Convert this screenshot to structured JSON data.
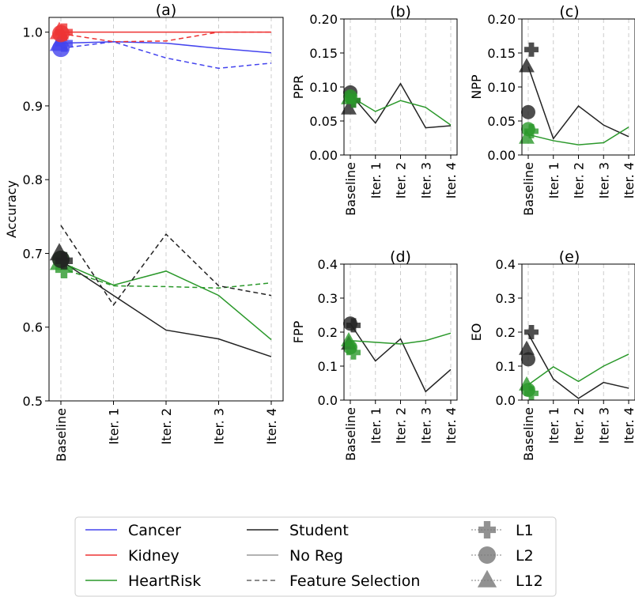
{
  "chart_data": [
    {
      "id": "a",
      "type": "line",
      "title": "(a)",
      "ylabel": "Accuracy",
      "categories": [
        "Baseline",
        "Iter. 1",
        "Iter. 2",
        "Iter. 3",
        "Iter. 4"
      ],
      "ylim": [
        0.5,
        1.02
      ],
      "yticks": [
        "0.5",
        "0.6",
        "0.7",
        "0.8",
        "0.9",
        "1.0"
      ],
      "ytick_values": [
        0.5,
        0.6,
        0.7,
        0.8,
        0.9,
        1.0
      ],
      "series": [
        {
          "dataset": "Cancer",
          "style": "No Reg",
          "values": [
            0.985,
            0.987,
            0.985,
            0.978,
            0.972
          ]
        },
        {
          "dataset": "Cancer",
          "style": "Feature Selection",
          "values": [
            0.978,
            0.987,
            0.965,
            0.951,
            0.958
          ]
        },
        {
          "dataset": "Kidney",
          "style": "No Reg",
          "values": [
            1.0,
            1.0,
            1.0,
            1.0,
            1.0
          ]
        },
        {
          "dataset": "Kidney",
          "style": "Feature Selection",
          "values": [
            0.998,
            0.987,
            0.988,
            1.0,
            1.0
          ]
        },
        {
          "dataset": "HeartRisk",
          "style": "No Reg",
          "values": [
            0.688,
            0.657,
            0.676,
            0.643,
            0.583
          ]
        },
        {
          "dataset": "HeartRisk",
          "style": "Feature Selection",
          "values": [
            0.68,
            0.656,
            0.655,
            0.653,
            0.66
          ]
        },
        {
          "dataset": "Student",
          "style": "No Reg",
          "values": [
            0.69,
            0.643,
            0.596,
            0.584,
            0.56
          ]
        },
        {
          "dataset": "Student",
          "style": "Feature Selection",
          "values": [
            0.738,
            0.63,
            0.726,
            0.656,
            0.643
          ]
        }
      ],
      "markers": [
        {
          "dataset": "Cancer",
          "reg": "L1",
          "y": 0.985
        },
        {
          "dataset": "Cancer",
          "reg": "L2",
          "y": 0.978
        },
        {
          "dataset": "Cancer",
          "reg": "L12",
          "y": 0.984
        },
        {
          "dataset": "Kidney",
          "reg": "L1",
          "y": 1.0
        },
        {
          "dataset": "Kidney",
          "reg": "L2",
          "y": 0.998
        },
        {
          "dataset": "Kidney",
          "reg": "L12",
          "y": 1.0
        },
        {
          "dataset": "HeartRisk",
          "reg": "L1",
          "y": 0.678
        },
        {
          "dataset": "HeartRisk",
          "reg": "L2",
          "y": 0.692
        },
        {
          "dataset": "HeartRisk",
          "reg": "L12",
          "y": 0.687
        },
        {
          "dataset": "Student",
          "reg": "L1",
          "y": 0.69
        },
        {
          "dataset": "Student",
          "reg": "L2",
          "y": 0.692
        },
        {
          "dataset": "Student",
          "reg": "L12",
          "y": 0.7
        }
      ]
    },
    {
      "id": "b",
      "type": "line",
      "title": "(b)",
      "ylabel": "PPR",
      "categories": [
        "Baseline",
        "Iter. 1",
        "Iter. 2",
        "Iter. 3",
        "Iter. 4"
      ],
      "ylim": [
        0.0,
        0.2
      ],
      "yticks": [
        "0.00",
        "0.05",
        "0.10",
        "0.15",
        "0.20"
      ],
      "ytick_values": [
        0.0,
        0.05,
        0.1,
        0.15,
        0.2
      ],
      "series": [
        {
          "dataset": "Student",
          "style": "No Reg",
          "values": [
            0.09,
            0.047,
            0.105,
            0.04,
            0.043
          ]
        },
        {
          "dataset": "HeartRisk",
          "style": "No Reg",
          "values": [
            0.086,
            0.064,
            0.08,
            0.07,
            0.044
          ]
        }
      ],
      "markers": [
        {
          "dataset": "Student",
          "reg": "L1",
          "y": 0.08
        },
        {
          "dataset": "Student",
          "reg": "L2",
          "y": 0.092
        },
        {
          "dataset": "Student",
          "reg": "L12",
          "y": 0.068
        },
        {
          "dataset": "HeartRisk",
          "reg": "L1",
          "y": 0.08
        },
        {
          "dataset": "HeartRisk",
          "reg": "L2",
          "y": 0.086
        },
        {
          "dataset": "HeartRisk",
          "reg": "L12",
          "y": 0.083
        }
      ]
    },
    {
      "id": "c",
      "type": "line",
      "title": "(c)",
      "ylabel": "NPP",
      "categories": [
        "Baseline",
        "Iter. 1",
        "Iter. 2",
        "Iter. 3",
        "Iter. 4"
      ],
      "ylim": [
        0.0,
        0.2
      ],
      "yticks": [
        "0.00",
        "0.05",
        "0.10",
        "0.15",
        "0.20"
      ],
      "ytick_values": [
        0.0,
        0.05,
        0.1,
        0.15,
        0.2
      ],
      "series": [
        {
          "dataset": "Student",
          "style": "No Reg",
          "values": [
            0.13,
            0.024,
            0.072,
            0.044,
            0.027
          ]
        },
        {
          "dataset": "HeartRisk",
          "style": "No Reg",
          "values": [
            0.03,
            0.021,
            0.015,
            0.018,
            0.041
          ]
        }
      ],
      "markers": [
        {
          "dataset": "Student",
          "reg": "L1",
          "y": 0.155
        },
        {
          "dataset": "Student",
          "reg": "L2",
          "y": 0.063
        },
        {
          "dataset": "Student",
          "reg": "L12",
          "y": 0.13
        },
        {
          "dataset": "HeartRisk",
          "reg": "L1",
          "y": 0.035
        },
        {
          "dataset": "HeartRisk",
          "reg": "L2",
          "y": 0.038
        },
        {
          "dataset": "HeartRisk",
          "reg": "L12",
          "y": 0.025
        }
      ]
    },
    {
      "id": "d",
      "type": "line",
      "title": "(d)",
      "ylabel": "FPP",
      "categories": [
        "Baseline",
        "Iter. 1",
        "Iter. 2",
        "Iter. 3",
        "Iter. 4"
      ],
      "ylim": [
        0.0,
        0.4
      ],
      "yticks": [
        "0.0",
        "0.1",
        "0.2",
        "0.3",
        "0.4"
      ],
      "ytick_values": [
        0.0,
        0.1,
        0.2,
        0.3,
        0.4
      ],
      "series": [
        {
          "dataset": "Student",
          "style": "No Reg",
          "values": [
            0.225,
            0.115,
            0.18,
            0.025,
            0.09
          ]
        },
        {
          "dataset": "HeartRisk",
          "style": "No Reg",
          "values": [
            0.175,
            0.17,
            0.165,
            0.175,
            0.197
          ]
        }
      ],
      "markers": [
        {
          "dataset": "Student",
          "reg": "L1",
          "y": 0.22
        },
        {
          "dataset": "Student",
          "reg": "L2",
          "y": 0.225
        },
        {
          "dataset": "Student",
          "reg": "L12",
          "y": 0.165
        },
        {
          "dataset": "HeartRisk",
          "reg": "L1",
          "y": 0.14
        },
        {
          "dataset": "HeartRisk",
          "reg": "L2",
          "y": 0.155
        },
        {
          "dataset": "HeartRisk",
          "reg": "L12",
          "y": 0.175
        }
      ]
    },
    {
      "id": "e",
      "type": "line",
      "title": "(e)",
      "ylabel": "EO",
      "categories": [
        "Baseline",
        "Iter. 1",
        "Iter. 2",
        "Iter. 3",
        "Iter. 4"
      ],
      "ylim": [
        0.0,
        0.4
      ],
      "yticks": [
        "0.0",
        "0.1",
        "0.2",
        "0.3",
        "0.4"
      ],
      "ytick_values": [
        0.0,
        0.1,
        0.2,
        0.3,
        0.4
      ],
      "series": [
        {
          "dataset": "Student",
          "style": "No Reg",
          "values": [
            0.195,
            0.062,
            0.005,
            0.052,
            0.035
          ]
        },
        {
          "dataset": "HeartRisk",
          "style": "No Reg",
          "values": [
            0.045,
            0.098,
            0.055,
            0.1,
            0.135
          ]
        }
      ],
      "markers": [
        {
          "dataset": "Student",
          "reg": "L1",
          "y": 0.2
        },
        {
          "dataset": "Student",
          "reg": "L2",
          "y": 0.12
        },
        {
          "dataset": "Student",
          "reg": "L12",
          "y": 0.15
        },
        {
          "dataset": "HeartRisk",
          "reg": "L1",
          "y": 0.02
        },
        {
          "dataset": "HeartRisk",
          "reg": "L2",
          "y": 0.03
        },
        {
          "dataset": "HeartRisk",
          "reg": "L12",
          "y": 0.045
        }
      ]
    }
  ],
  "colors": {
    "Cancer": "#4444ee",
    "Kidney": "#ee3333",
    "HeartRisk": "#2a982a",
    "Student": "#222222"
  },
  "legend": {
    "placement": "bottom-center",
    "datasets": [
      "Cancer",
      "Kidney",
      "HeartRisk"
    ],
    "styles": [
      {
        "label": "Student",
        "kind": "student"
      },
      {
        "label": "No Reg",
        "kind": "noreg"
      },
      {
        "label": "Feature Selection",
        "kind": "fs"
      }
    ],
    "markers": [
      {
        "label": "L1",
        "shape": "plus"
      },
      {
        "label": "L2",
        "shape": "circle"
      },
      {
        "label": "L12",
        "shape": "triangle"
      }
    ]
  }
}
